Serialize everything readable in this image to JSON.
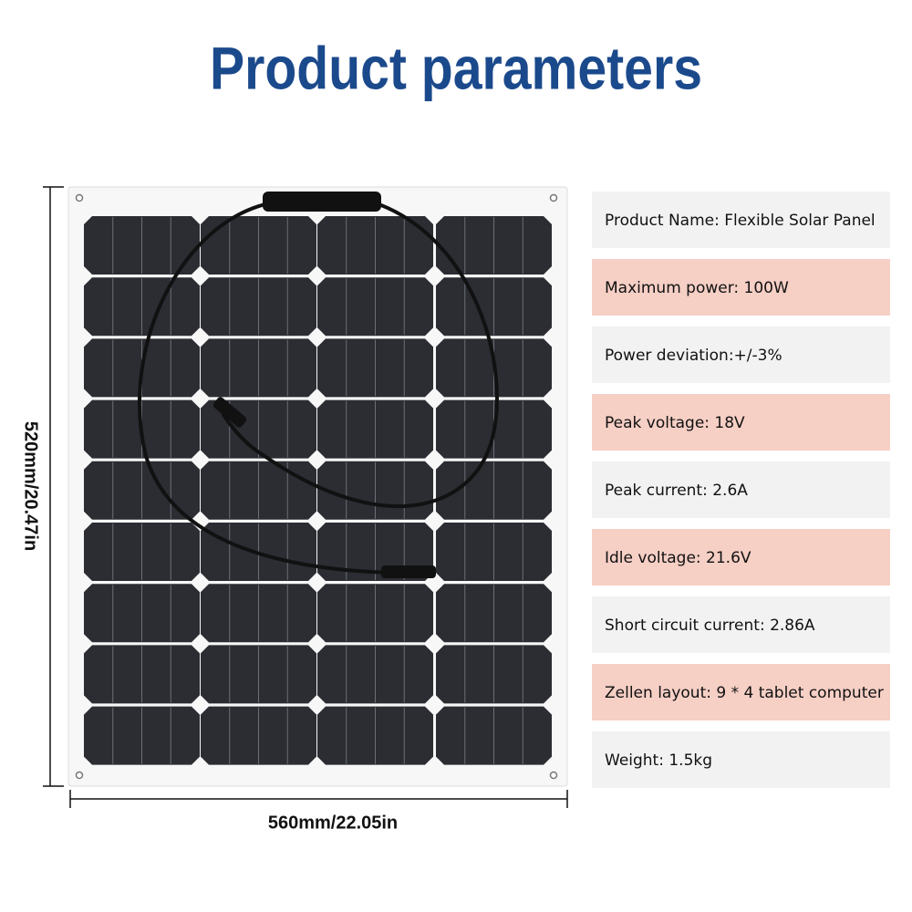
{
  "header": {
    "title": "Product parameters"
  },
  "dimensions": {
    "height": "520mm/20.47in",
    "width": "560mm/22.05in"
  },
  "parameters": [
    "Product Name: Flexible Solar Panel",
    "Maximum power: 100W",
    "Power deviation:+/-3%",
    "Peak voltage: 18V",
    "Peak current: 2.6A",
    "Idle voltage: 21.6V",
    "Short circuit current: 2.86A",
    "Zellen layout: 9 * 4 tablet computer",
    "Weight: 1.5kg"
  ]
}
